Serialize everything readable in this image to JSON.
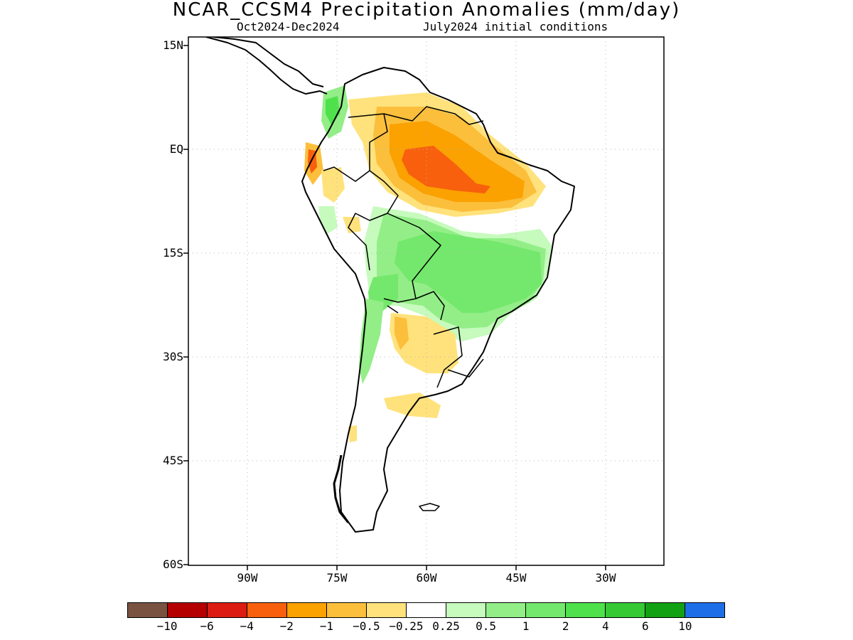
{
  "title": "NCAR_CCSM4 Precipitation Anomalies (mm/day)",
  "subtitle_period": "Oct2024-Dec2024",
  "subtitle_ic": "July2024 initial conditions",
  "lat_labels": [
    "15N",
    "EQ",
    "15S",
    "30S",
    "45S",
    "60S"
  ],
  "lon_labels": [
    "90W",
    "75W",
    "60W",
    "45W",
    "30W"
  ],
  "colorbar": {
    "colors": [
      "#7a5242",
      "#b40000",
      "#dc1c12",
      "#f8600d",
      "#fba100",
      "#fbbf3c",
      "#ffe27c",
      "#ffffff",
      "#c6fbbd",
      "#93ee87",
      "#74e86c",
      "#4ee14b",
      "#36c934",
      "#12a112",
      "#1e6ee8"
    ],
    "labels": [
      "-10",
      "-6",
      "-4",
      "-2",
      "-1",
      "-0.5",
      "-0.25",
      "0.25",
      "0.5",
      "1",
      "2",
      "4",
      "6",
      "10"
    ]
  },
  "map_data": {
    "region": "South America",
    "lon_range": [
      -100,
      -20
    ],
    "lat_range": [
      -60,
      15
    ],
    "grid": true,
    "anomalies": [
      {
        "area": "Amazon basin / northern Brazil",
        "category": "-2 to -1",
        "level": -1.5
      },
      {
        "area": "central Amazon core",
        "category": "-4 to -2",
        "level": -3
      },
      {
        "area": "Venezuela / Guianas",
        "category": "-1 to -0.5",
        "level": -0.75
      },
      {
        "area": "Ecuador / northern Peru coast",
        "category": "-2 to -1",
        "level": -1.5
      },
      {
        "area": "central Brazil",
        "category": "1 to 2",
        "level": 1.5
      },
      {
        "area": "Bolivia / Paraguay",
        "category": "0.5 to 1",
        "level": 0.75
      },
      {
        "area": "northern Argentina / Chaco",
        "category": "-0.5 to -0.25",
        "level": -0.4
      },
      {
        "area": "central Argentina",
        "category": "-0.5 to -0.25",
        "level": -0.4
      },
      {
        "area": "Colombian Pacific coast",
        "category": "1 to 2",
        "level": 1.5
      },
      {
        "area": "central Chile / Andes",
        "category": "0.5 to 1",
        "level": 0.75
      }
    ]
  }
}
